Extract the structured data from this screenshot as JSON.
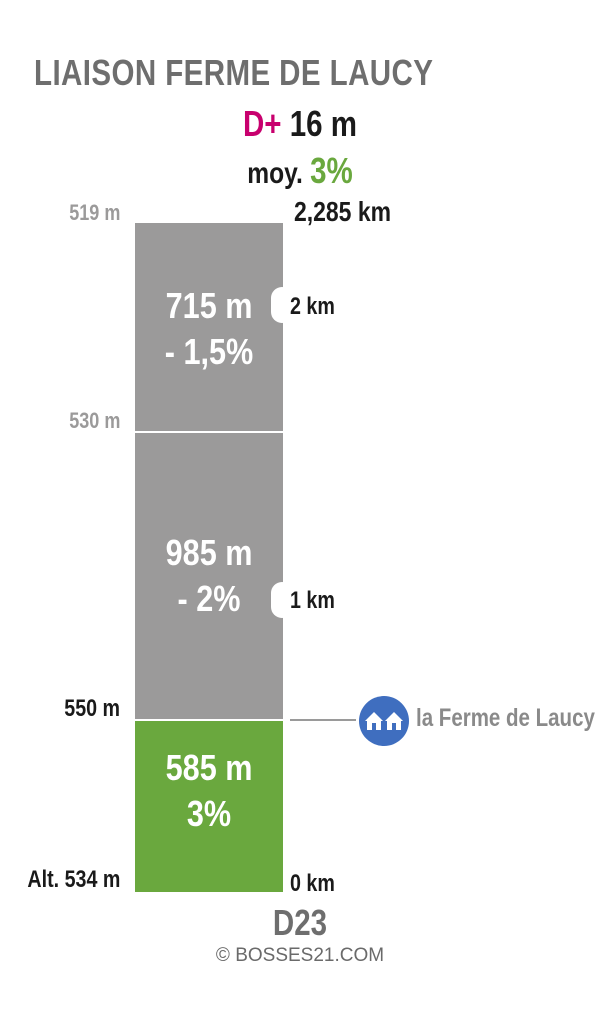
{
  "header": {
    "title": "LIAISON FERME DE LAUCY",
    "dplus_label": "D+",
    "dplus_value": "16 m",
    "avg_label": "moy.",
    "avg_value": "3%"
  },
  "profile": {
    "total_distance": "2,285 km",
    "road": "D23",
    "segments": [
      {
        "id": "seg1",
        "length": "585 m",
        "gradient": "3%",
        "color": "#6aa83e"
      },
      {
        "id": "seg2",
        "length": "985 m",
        "gradient": "- 2%",
        "color": "#9b9a9a"
      },
      {
        "id": "seg3",
        "length": "715 m",
        "gradient": "- 1,5%",
        "color": "#9b9a9a"
      }
    ],
    "altitudes": [
      {
        "label": "Alt. 534 m",
        "color": "#1a1a1a"
      },
      {
        "label": "550 m",
        "color": "#1a1a1a"
      },
      {
        "label": "530 m",
        "color": "#9b9a9a"
      },
      {
        "label": "519 m",
        "color": "#9b9a9a"
      }
    ],
    "km_markers": [
      "0 km",
      "1 km",
      "2 km"
    ]
  },
  "poi": {
    "label": "la Ferme de Laucy",
    "icon": "houses-icon",
    "color": "#3f6ebf"
  },
  "footer": {
    "credit": "© BOSSES21.COM"
  }
}
